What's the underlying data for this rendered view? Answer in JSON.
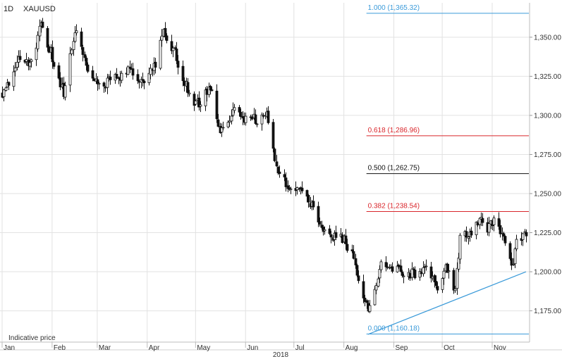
{
  "header": {
    "interval": "1D",
    "symbol": "XAUUSD"
  },
  "footnote": "Indicative price",
  "year_label": "2018",
  "colors": {
    "candle": "#111111",
    "grid": "#e2e2e2",
    "fib_blue": "#3a9ad9",
    "fib_red": "#d9262b",
    "fib_black": "#111111",
    "trendline": "#3a9ad9"
  },
  "chart_data": {
    "type": "candlestick",
    "title": "XAUUSD",
    "interval": "1D",
    "ylim": [
      1155,
      1372
    ],
    "y_ticks": [
      {
        "value": 1175,
        "label": "1,175.00"
      },
      {
        "value": 1200,
        "label": "1,200.00"
      },
      {
        "value": 1225,
        "label": "1,225.00"
      },
      {
        "value": 1250,
        "label": "1,250.00"
      },
      {
        "value": 1275,
        "label": "1,275.00"
      },
      {
        "value": 1300,
        "label": "1,300.00"
      },
      {
        "value": 1325,
        "label": "1,325.00"
      },
      {
        "value": 1350,
        "label": "1,350.00"
      }
    ],
    "x_ticks": [
      {
        "date": "2018-01-01",
        "label": "Jan"
      },
      {
        "date": "2018-02-01",
        "label": "Feb"
      },
      {
        "date": "2018-03-01",
        "label": "Mar"
      },
      {
        "date": "2018-04-01",
        "label": "Apr"
      },
      {
        "date": "2018-05-01",
        "label": "May"
      },
      {
        "date": "2018-06-01",
        "label": "Jun"
      },
      {
        "date": "2018-07-01",
        "label": "Jul"
      },
      {
        "date": "2018-08-01",
        "label": "Aug"
      },
      {
        "date": "2018-09-01",
        "label": "Sep"
      },
      {
        "date": "2018-10-01",
        "label": "Oct"
      },
      {
        "date": "2018-11-01",
        "label": "Nov"
      }
    ],
    "x_range": [
      "2018-01-01",
      "2018-11-22"
    ],
    "price_path": [
      [
        "2018-01-01",
        1315
      ],
      [
        "2018-01-05",
        1322
      ],
      [
        "2018-01-12",
        1338
      ],
      [
        "2018-01-19",
        1333
      ],
      [
        "2018-01-25",
        1358
      ],
      [
        "2018-01-31",
        1340
      ],
      [
        "2018-02-08",
        1314
      ],
      [
        "2018-02-15",
        1354
      ],
      [
        "2018-02-23",
        1330
      ],
      [
        "2018-03-01",
        1318
      ],
      [
        "2018-03-08",
        1322
      ],
      [
        "2018-03-15",
        1325
      ],
      [
        "2018-03-22",
        1330
      ],
      [
        "2018-03-29",
        1322
      ],
      [
        "2018-04-05",
        1330
      ],
      [
        "2018-04-11",
        1352
      ],
      [
        "2018-04-18",
        1340
      ],
      [
        "2018-04-24",
        1322
      ],
      [
        "2018-05-01",
        1306
      ],
      [
        "2018-05-10",
        1318
      ],
      [
        "2018-05-16",
        1290
      ],
      [
        "2018-05-25",
        1304
      ],
      [
        "2018-06-01",
        1297
      ],
      [
        "2018-06-08",
        1298
      ],
      [
        "2018-06-14",
        1302
      ],
      [
        "2018-06-19",
        1270
      ],
      [
        "2018-06-29",
        1252
      ],
      [
        "2018-07-05",
        1255
      ],
      [
        "2018-07-12",
        1242
      ],
      [
        "2018-07-19",
        1225
      ],
      [
        "2018-07-31",
        1222
      ],
      [
        "2018-08-06",
        1210
      ],
      [
        "2018-08-16",
        1175
      ],
      [
        "2018-08-24",
        1204
      ],
      [
        "2018-08-29",
        1203
      ],
      [
        "2018-09-06",
        1200
      ],
      [
        "2018-09-14",
        1198
      ],
      [
        "2018-09-21",
        1204
      ],
      [
        "2018-09-28",
        1188
      ],
      [
        "2018-10-03",
        1203
      ],
      [
        "2018-10-09",
        1188
      ],
      [
        "2018-10-12",
        1220
      ],
      [
        "2018-10-19",
        1226
      ],
      [
        "2018-10-24",
        1234
      ],
      [
        "2018-10-29",
        1228
      ],
      [
        "2018-11-02",
        1232
      ],
      [
        "2018-11-07",
        1226
      ],
      [
        "2018-11-13",
        1202
      ],
      [
        "2018-11-16",
        1218
      ],
      [
        "2018-11-22",
        1225
      ]
    ],
    "fibonacci": [
      {
        "level": "1.000",
        "value": 1365.32,
        "label": "1.000 (1,365.32)",
        "color": "#3a9ad9"
      },
      {
        "level": "0.618",
        "value": 1286.96,
        "label": "0.618 (1,286.96)",
        "color": "#d9262b"
      },
      {
        "level": "0.500",
        "value": 1262.75,
        "label": "0.500 (1,262.75)",
        "color": "#111111"
      },
      {
        "level": "0.382",
        "value": 1238.54,
        "label": "0.382 (1,238.54)",
        "color": "#d9262b"
      },
      {
        "level": "0.000",
        "value": 1160.18,
        "label": "0.000 (1,160.18)",
        "color": "#3a9ad9"
      }
    ],
    "fib_start_date": "2018-08-15",
    "trendline": {
      "from": [
        "2018-08-16",
        1160
      ],
      "to": [
        "2018-11-22",
        1200
      ]
    },
    "grid": true
  }
}
